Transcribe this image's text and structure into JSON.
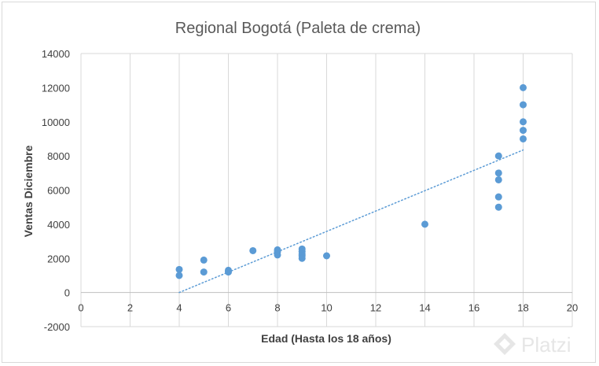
{
  "chart_data": {
    "type": "scatter",
    "title": "Regional Bogotá (Paleta de crema)",
    "xlabel": "Edad (Hasta los 18 años)",
    "ylabel": "Ventas Diciembre",
    "xlim": [
      0,
      20
    ],
    "ylim": [
      -2000,
      14000
    ],
    "xticks": [
      0,
      2,
      4,
      6,
      8,
      10,
      12,
      14,
      16,
      18,
      20
    ],
    "yticks": [
      -2000,
      0,
      2000,
      4000,
      6000,
      8000,
      10000,
      12000,
      14000
    ],
    "grid": "vertical",
    "marker_color": "#5b9bd5",
    "trendline": {
      "type": "linear",
      "style": "dotted",
      "from": [
        4,
        0
      ],
      "to": [
        18,
        8350
      ]
    },
    "points": [
      {
        "x": 4,
        "y": 1350
      },
      {
        "x": 4,
        "y": 1000
      },
      {
        "x": 5,
        "y": 1900
      },
      {
        "x": 5,
        "y": 1200
      },
      {
        "x": 6,
        "y": 1300
      },
      {
        "x": 6,
        "y": 1200
      },
      {
        "x": 7,
        "y": 2450
      },
      {
        "x": 8,
        "y": 2500
      },
      {
        "x": 8,
        "y": 2400
      },
      {
        "x": 8,
        "y": 2200
      },
      {
        "x": 9,
        "y": 2550
      },
      {
        "x": 9,
        "y": 2400
      },
      {
        "x": 9,
        "y": 2250
      },
      {
        "x": 9,
        "y": 2150
      },
      {
        "x": 9,
        "y": 2000
      },
      {
        "x": 10,
        "y": 2150
      },
      {
        "x": 14,
        "y": 4000
      },
      {
        "x": 17,
        "y": 8000
      },
      {
        "x": 17,
        "y": 7000
      },
      {
        "x": 17,
        "y": 6600
      },
      {
        "x": 17,
        "y": 5600
      },
      {
        "x": 17,
        "y": 5000
      },
      {
        "x": 18,
        "y": 12000
      },
      {
        "x": 18,
        "y": 11000
      },
      {
        "x": 18,
        "y": 10000
      },
      {
        "x": 18,
        "y": 9500
      },
      {
        "x": 18,
        "y": 9000
      }
    ]
  },
  "watermark": {
    "text": "Platzi",
    "icon": "platzi-logo-icon"
  }
}
